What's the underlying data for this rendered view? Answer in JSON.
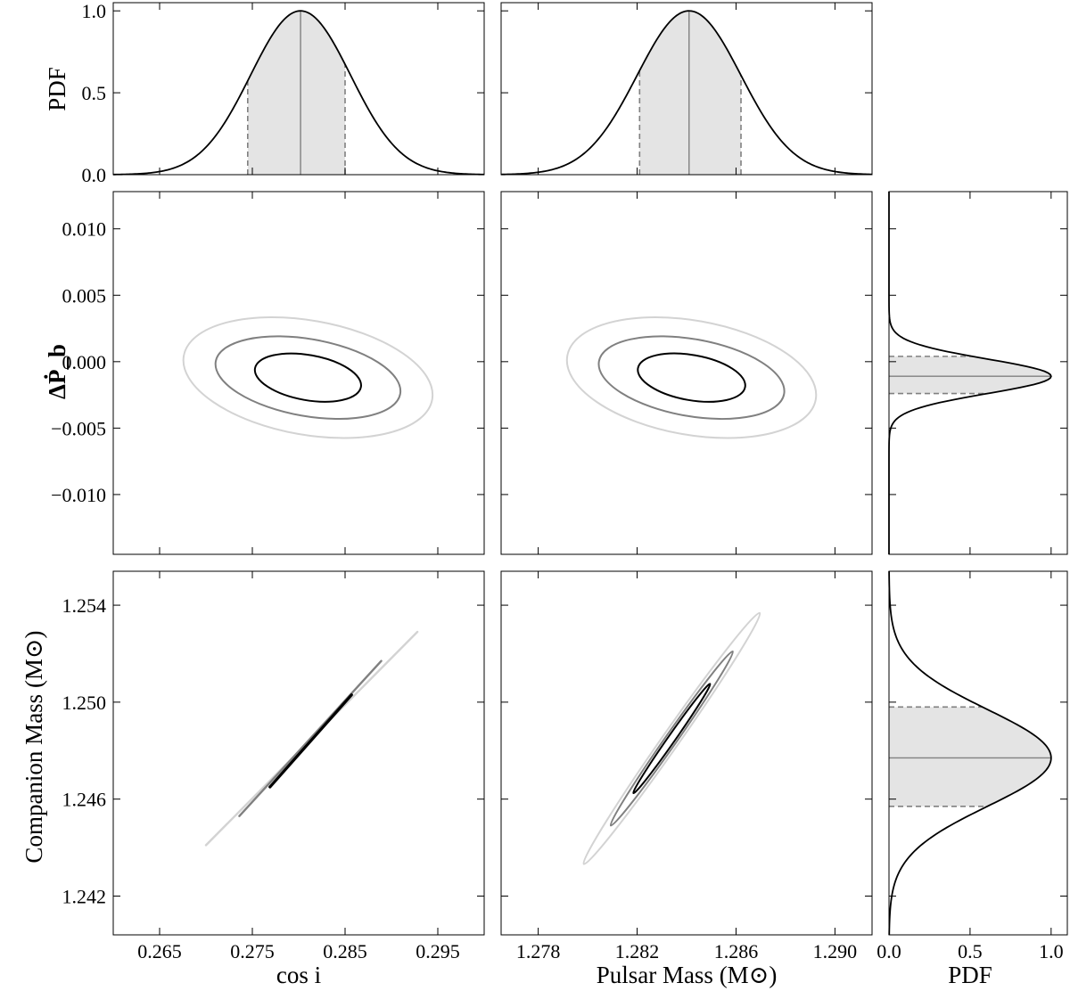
{
  "chart_data": [
    {
      "panel": "cosi-marginal",
      "type": "line",
      "xlim": [
        0.26,
        0.3
      ],
      "ylim": [
        0,
        1.05
      ],
      "ylabel": "PDF",
      "yticks": [
        "0.0",
        "0.5",
        "1.0"
      ],
      "yticks_at": [
        0,
        0.5,
        1.0
      ],
      "peak": 0.2802,
      "interval": [
        0.2745,
        0.285
      ],
      "sigma": 0.0054
    },
    {
      "panel": "mp-marginal",
      "type": "line",
      "xlim": [
        1.2765,
        1.2915
      ],
      "ylim": [
        0,
        1.05
      ],
      "peak": 1.2841,
      "interval": [
        1.2821,
        1.2862
      ],
      "sigma": 0.0021
    },
    {
      "panel": "dpb-vs-cosi",
      "type": "contour",
      "xlim": [
        0.26,
        0.3
      ],
      "ylim": [
        -0.0145,
        0.0128
      ],
      "ylabel": "ΔṖ_b",
      "yticks": [
        "0.010",
        "0.005",
        "0.000",
        "−0.005",
        "−0.010"
      ],
      "yticks_at": [
        0.01,
        0.005,
        0.0,
        -0.005,
        -0.01
      ],
      "center": [
        0.281,
        -0.0012
      ],
      "contours": [
        {
          "level": 3,
          "color": "#d3d3d3",
          "a": 0.0136,
          "b": 0.0043
        },
        {
          "level": 2,
          "color": "#808080",
          "a": 0.0101,
          "b": 0.0029
        },
        {
          "level": 1,
          "color": "#000000",
          "a": 0.0058,
          "b": 0.0017
        }
      ],
      "tilt_deg": -10
    },
    {
      "panel": "dpb-vs-mp",
      "type": "contour",
      "xlim": [
        1.2765,
        1.2915
      ],
      "ylim": [
        -0.0145,
        0.0128
      ],
      "center": [
        1.2842,
        -0.0012
      ],
      "contours": [
        {
          "level": 3,
          "color": "#d3d3d3",
          "a": 0.0051,
          "b": 0.0043
        },
        {
          "level": 2,
          "color": "#808080",
          "a": 0.0038,
          "b": 0.0029
        },
        {
          "level": 1,
          "color": "#000000",
          "a": 0.0022,
          "b": 0.0017
        }
      ],
      "tilt_deg": -10
    },
    {
      "panel": "dpb-marginal",
      "type": "line",
      "xlim": [
        0,
        1.1
      ],
      "ylim": [
        -0.0145,
        0.0128
      ],
      "peak": -0.0011,
      "interval": [
        -0.0024,
        0.0004
      ],
      "sigma": 0.0013
    },
    {
      "panel": "mc-vs-cosi",
      "type": "contour",
      "xlim": [
        0.26,
        0.3
      ],
      "ylim": [
        1.2404,
        1.2554
      ],
      "ylabel": "Companion Mass (M⊙)",
      "xlabel": "cos i",
      "xticks": [
        "0.265",
        "0.275",
        "0.285",
        "0.295"
      ],
      "xticks_at": [
        0.265,
        0.275,
        0.285,
        0.295
      ],
      "yticks": [
        "1.254",
        "1.250",
        "1.246",
        "1.242"
      ],
      "yticks_at": [
        1.254,
        1.25,
        1.246,
        1.242
      ],
      "segments": [
        {
          "level": 3,
          "color": "#d3d3d3",
          "from": [
            0.27,
            1.2441
          ],
          "to": [
            0.2928,
            1.2529
          ]
        },
        {
          "level": 2,
          "color": "#808080",
          "from": [
            0.2736,
            1.2453
          ],
          "to": [
            0.2889,
            1.2517
          ]
        },
        {
          "level": 1,
          "color": "#000000",
          "from": [
            0.2769,
            1.2465
          ],
          "to": [
            0.2857,
            1.2503
          ]
        }
      ]
    },
    {
      "panel": "mc-vs-mp",
      "type": "contour",
      "xlim": [
        1.2765,
        1.2915
      ],
      "ylim": [
        1.2404,
        1.2554
      ],
      "xlabel": "Pulsar Mass (M⊙)",
      "xticks": [
        "1.278",
        "1.282",
        "1.286",
        "1.290"
      ],
      "xticks_at": [
        1.278,
        1.282,
        1.286,
        1.29
      ],
      "center": [
        1.2834,
        1.2485
      ],
      "contours": [
        {
          "level": 3,
          "color": "#d3d3d3",
          "a": 0.0062,
          "b": 0.00035
        },
        {
          "level": 2,
          "color": "#808080",
          "a": 0.0043,
          "b": 0.00024
        },
        {
          "level": 1,
          "color": "#000000",
          "a": 0.0027,
          "b": 0.00015
        }
      ],
      "tilt_deg": 55
    },
    {
      "panel": "mc-marginal",
      "type": "line",
      "xlim": [
        0,
        1.1
      ],
      "ylim": [
        1.2404,
        1.2554
      ],
      "xlabel": "PDF",
      "xticks": [
        "0.0",
        "0.5",
        "1.0"
      ],
      "xticks_at": [
        0,
        0.5,
        1.0
      ],
      "peak": 1.2477,
      "interval": [
        1.2457,
        1.2498
      ],
      "sigma": 0.002
    }
  ]
}
